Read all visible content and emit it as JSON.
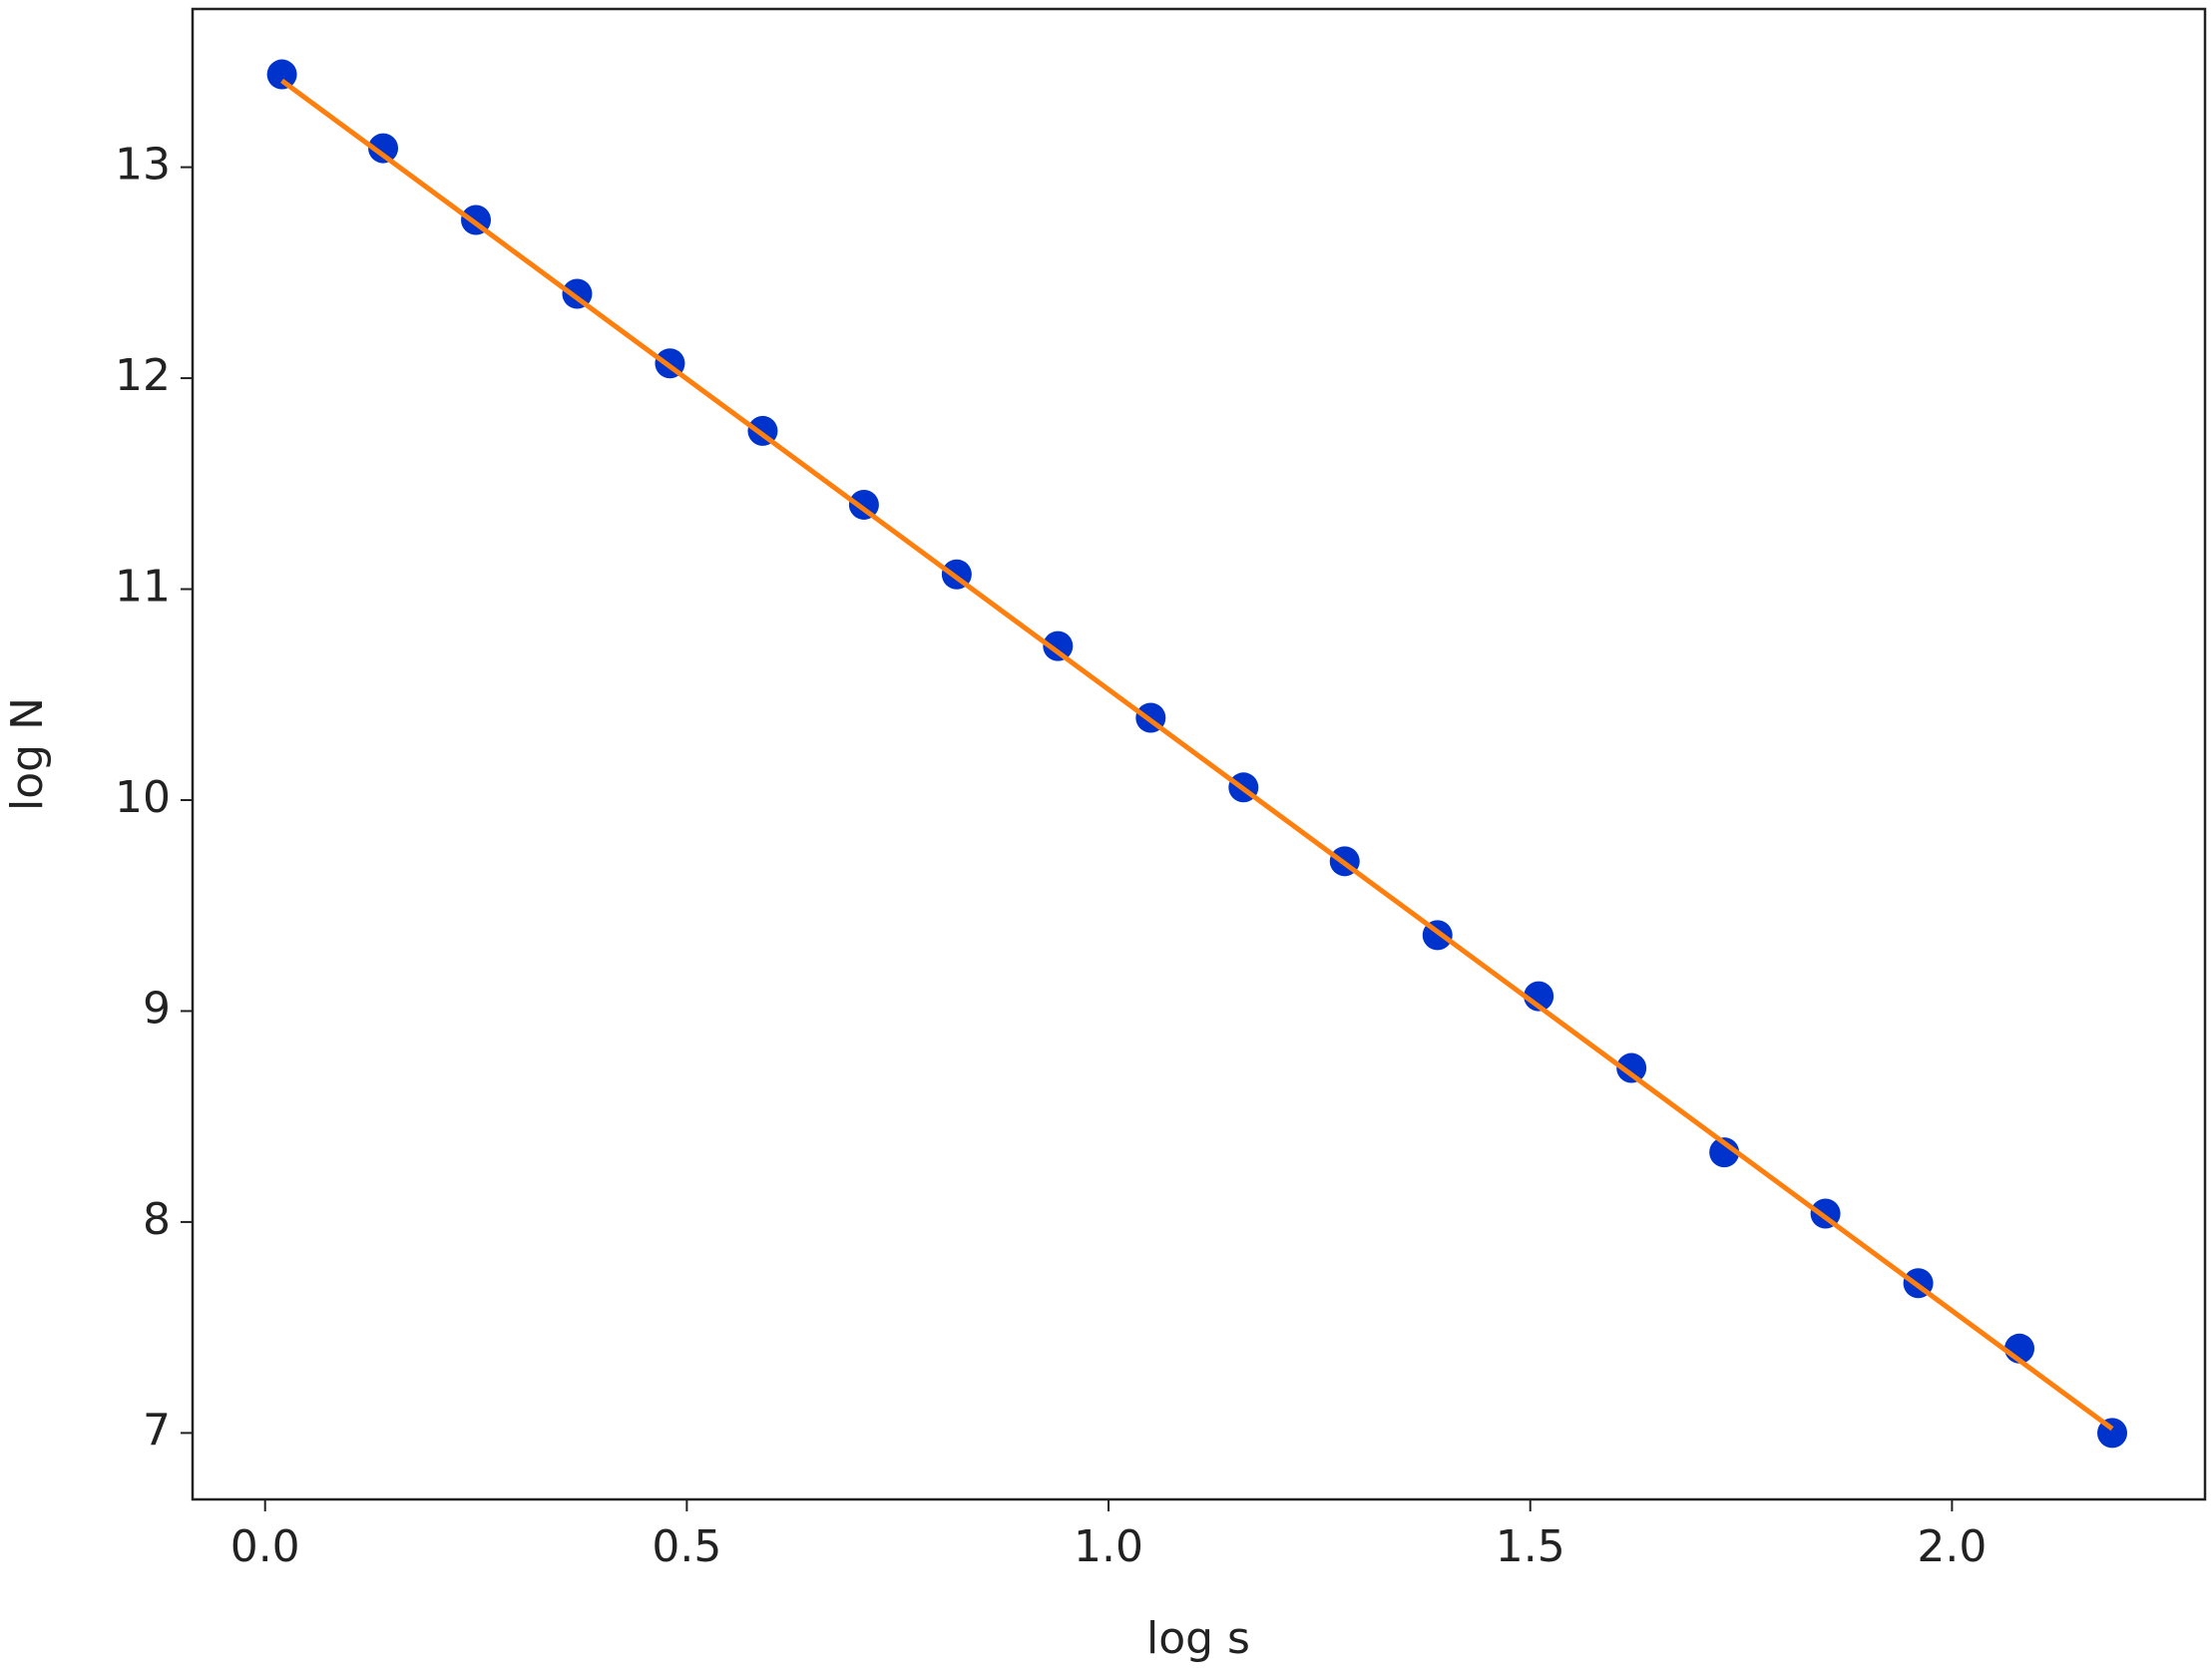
{
  "chart_data": {
    "type": "scatter",
    "xlabel": "log s",
    "ylabel": "log N",
    "series": [
      {
        "type": "scatter",
        "color": "#0033cc",
        "x": [
          0.02,
          0.14,
          0.25,
          0.37,
          0.48,
          0.59,
          0.71,
          0.82,
          0.94,
          1.05,
          1.16,
          1.28,
          1.39,
          1.51,
          1.62,
          1.73,
          1.85,
          1.96,
          2.08,
          2.19
        ],
        "values": [
          13.44,
          13.09,
          12.75,
          12.4,
          12.07,
          11.75,
          11.4,
          11.07,
          10.73,
          10.39,
          10.06,
          9.71,
          9.36,
          9.07,
          8.73,
          8.33,
          8.04,
          7.71,
          7.4,
          7.0
        ]
      },
      {
        "type": "line",
        "color": "#ff7f0e",
        "x": [
          0.02,
          2.19
        ],
        "values": [
          13.41,
          7.02
        ]
      }
    ],
    "xlim": [
      -0.086,
      2.3
    ],
    "ylim": [
      6.685,
      13.75
    ],
    "xticks": [
      {
        "value": 0,
        "label": "0.0"
      },
      0.5,
      {
        "value": 1,
        "label": "1.0"
      },
      1.5,
      {
        "value": 2,
        "label": "2.0"
      }
    ],
    "yticks": [
      7,
      8,
      9,
      10,
      11,
      12,
      13
    ]
  }
}
